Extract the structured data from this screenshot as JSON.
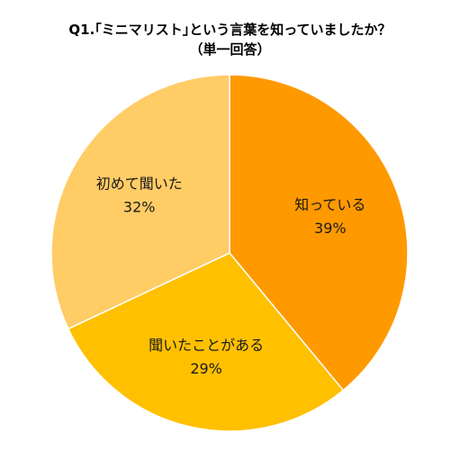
{
  "chart_data": {
    "type": "pie",
    "title": "Q1.｢ミニマリスト｣という言葉を知っていましたか？",
    "subtitle": "（単一回答）",
    "start_angle_deg": 0,
    "direction": "clockwise",
    "slices": [
      {
        "label": "知っている",
        "value": 39,
        "value_label": "39%",
        "color": "#FF9900"
      },
      {
        "label": "聞いたことがある",
        "value": 29,
        "value_label": "29%",
        "color": "#FFC000"
      },
      {
        "label": "初めて聞いた",
        "value": 32,
        "value_label": "32%",
        "color": "#FFCC66"
      }
    ]
  }
}
